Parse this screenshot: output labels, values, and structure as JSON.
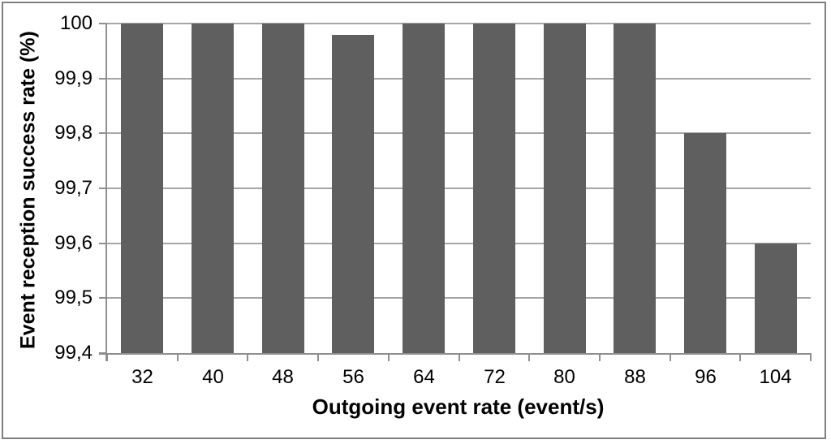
{
  "chart_data": {
    "type": "bar",
    "title": "",
    "categories": [
      "32",
      "40",
      "48",
      "56",
      "64",
      "72",
      "80",
      "88",
      "96",
      "104"
    ],
    "values": [
      100,
      100,
      100,
      99.98,
      100,
      100,
      100,
      100,
      99.8,
      99.6
    ],
    "series_name": "Event reception success rate",
    "xlabel": "Outgoing event rate (event/s)",
    "ylabel": "Event reception success rate (%)",
    "ylim": [
      99.4,
      100
    ],
    "ytick_step": 0.1,
    "ytick_labels": [
      "100",
      "99,9",
      "99,8",
      "99,7",
      "99,6",
      "99,5",
      "99,4"
    ],
    "decimal_separator": ",",
    "grid": "horizontal",
    "legend_position": "none",
    "bar_color": "#5f5f5f",
    "gridline_color": "#a6a6a6",
    "axis_color": "#8f8f8f",
    "text_color": "#000000",
    "border_color": "#7f7f7f",
    "background_color": "#ffffff"
  }
}
